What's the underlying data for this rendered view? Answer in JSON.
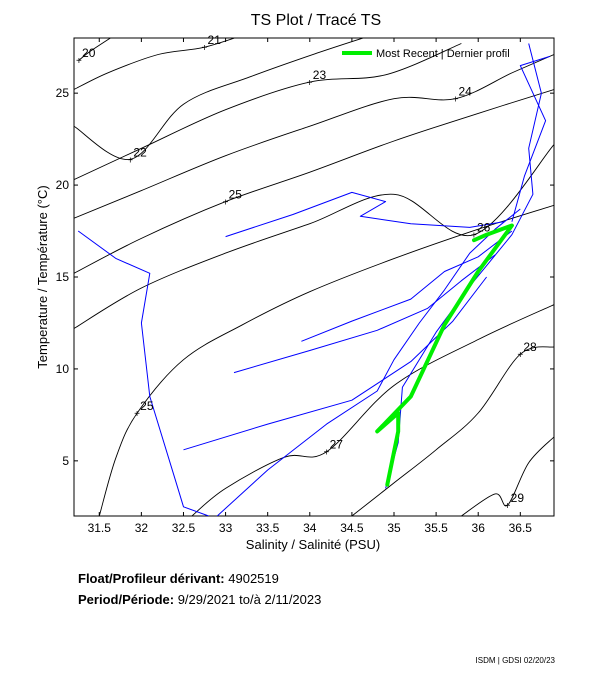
{
  "chart_data": {
    "type": "scatter",
    "title": "TS Plot / Tracé TS",
    "xlabel": "Salinity / Salinité (PSU)",
    "ylabel": "Temperature / Température (°C)",
    "xlim": [
      31.2,
      36.9
    ],
    "ylim": [
      2,
      28
    ],
    "xticks": [
      31.5,
      32,
      32.5,
      33,
      33.5,
      34,
      34.5,
      35,
      35.5,
      36,
      36.5
    ],
    "xtick_labels": [
      "31.5",
      "32",
      "32.5",
      "33",
      "33.5",
      "34",
      "34.5",
      "35",
      "35.5",
      "36",
      "36.5"
    ],
    "yticks": [
      5,
      10,
      15,
      20,
      25
    ],
    "ytick_labels": [
      "5",
      "10",
      "15",
      "20",
      "25"
    ],
    "density_isolines": [
      {
        "label": "20",
        "points": [
          [
            31.26,
            26.8
          ],
          [
            31.4,
            27.3
          ],
          [
            31.7,
            28.2
          ]
        ]
      },
      {
        "label": "21",
        "points": [
          [
            31.2,
            25.2
          ],
          [
            31.6,
            26.1
          ],
          [
            32.2,
            27.1
          ],
          [
            32.75,
            27.5
          ],
          [
            33.3,
            28.3
          ]
        ]
      },
      {
        "label": "22",
        "points": [
          [
            31.2,
            23.2
          ],
          [
            31.87,
            21.4
          ],
          [
            32.5,
            24.4
          ],
          [
            33.3,
            25.9
          ],
          [
            34.1,
            27.2
          ],
          [
            34.7,
            28.1
          ]
        ]
      },
      {
        "label": "23",
        "points": [
          [
            31.2,
            20.3
          ],
          [
            32.0,
            22.0
          ],
          [
            33.0,
            24.1
          ],
          [
            34.0,
            25.6
          ],
          [
            34.9,
            26.0
          ],
          [
            35.8,
            27.7
          ]
        ]
      },
      {
        "label": "24",
        "points": [
          [
            31.2,
            18.2
          ],
          [
            32.0,
            19.7
          ],
          [
            33.0,
            21.6
          ],
          [
            34.0,
            23.2
          ],
          [
            35.0,
            24.7
          ],
          [
            35.73,
            24.7
          ],
          [
            36.4,
            26.1
          ],
          [
            36.9,
            27.1
          ]
        ]
      },
      {
        "label": "25",
        "points": [
          [
            31.2,
            15.2
          ],
          [
            32.0,
            17.1
          ],
          [
            33.0,
            19.1
          ],
          [
            34.0,
            20.7
          ],
          [
            35.0,
            22.4
          ],
          [
            36.0,
            23.9
          ],
          [
            36.9,
            25.2
          ]
        ]
      },
      {
        "label": "26",
        "points": [
          [
            31.2,
            12.2
          ],
          [
            32.0,
            14.4
          ],
          [
            33.0,
            16.3
          ],
          [
            34.0,
            17.9
          ],
          [
            35.0,
            19.5
          ],
          [
            35.95,
            17.3
          ],
          [
            36.9,
            22.2
          ]
        ]
      },
      {
        "label": "25",
        "points": [
          [
            31.5,
            2.0
          ],
          [
            31.7,
            5.2
          ],
          [
            31.95,
            7.6
          ],
          [
            32.5,
            10.5
          ],
          [
            33.2,
            12.4
          ],
          [
            34.0,
            14.2
          ],
          [
            35.0,
            16.0
          ],
          [
            36.0,
            17.6
          ],
          [
            36.9,
            18.9
          ]
        ]
      },
      {
        "label": "27",
        "points": [
          [
            32.6,
            2.0
          ],
          [
            33.0,
            3.5
          ],
          [
            33.7,
            5.2
          ],
          [
            34.2,
            5.5
          ],
          [
            35.0,
            9.1
          ],
          [
            36.0,
            11.6
          ],
          [
            36.9,
            13.5
          ]
        ]
      },
      {
        "label": "28",
        "points": [
          [
            34.5,
            2.0
          ],
          [
            35.0,
            3.8
          ],
          [
            35.5,
            5.6
          ],
          [
            36.0,
            7.6
          ],
          [
            36.5,
            10.8
          ],
          [
            36.9,
            11.2
          ]
        ]
      },
      {
        "label": "29",
        "points": [
          [
            35.8,
            2.0
          ],
          [
            36.2,
            3.2
          ],
          [
            36.35,
            2.6
          ],
          [
            36.6,
            4.9
          ],
          [
            36.9,
            6.3
          ]
        ]
      }
    ],
    "float_track_samples": [
      {
        "series": "all profiles",
        "points": [
          [
            31.25,
            17.5
          ],
          [
            31.7,
            16.0
          ],
          [
            32.1,
            15.2
          ],
          [
            32.0,
            12.5
          ],
          [
            32.1,
            8.5
          ],
          [
            32.4,
            4.0
          ],
          [
            32.5,
            2.5
          ],
          [
            32.8,
            2.0
          ]
        ]
      },
      {
        "series": "all profiles",
        "points": [
          [
            32.9,
            2.0
          ],
          [
            33.5,
            4.5
          ],
          [
            34.2,
            7.0
          ],
          [
            34.8,
            8.8
          ],
          [
            35.0,
            10.5
          ],
          [
            35.3,
            12.5
          ],
          [
            35.6,
            14.3
          ],
          [
            35.9,
            16.3
          ],
          [
            36.2,
            17.6
          ],
          [
            36.5,
            18.7
          ]
        ]
      },
      {
        "series": "all profiles",
        "points": [
          [
            33.0,
            17.2
          ],
          [
            33.8,
            18.4
          ],
          [
            34.5,
            19.6
          ],
          [
            34.9,
            19.1
          ],
          [
            34.6,
            18.3
          ],
          [
            35.2,
            17.9
          ],
          [
            35.9,
            17.7
          ],
          [
            36.3,
            18.0
          ]
        ]
      },
      {
        "series": "all profiles",
        "points": [
          [
            33.9,
            11.5
          ],
          [
            34.5,
            12.6
          ],
          [
            35.2,
            13.8
          ],
          [
            35.6,
            15.3
          ],
          [
            36.0,
            16.1
          ],
          [
            36.4,
            17.5
          ]
        ]
      },
      {
        "series": "all profiles",
        "points": [
          [
            33.1,
            9.8
          ],
          [
            34.0,
            11.0
          ],
          [
            34.8,
            12.1
          ],
          [
            35.4,
            13.3
          ],
          [
            35.8,
            14.8
          ],
          [
            36.2,
            16.2
          ]
        ]
      },
      {
        "series": "all profiles",
        "points": [
          [
            32.5,
            5.6
          ],
          [
            33.5,
            7.0
          ],
          [
            34.5,
            8.3
          ],
          [
            35.2,
            10.4
          ],
          [
            35.7,
            12.6
          ],
          [
            36.1,
            15.0
          ]
        ]
      },
      {
        "series": "all profiles",
        "points": [
          [
            34.9,
            3.5
          ],
          [
            35.05,
            6.0
          ],
          [
            35.1,
            9.0
          ],
          [
            35.5,
            12.0
          ],
          [
            35.9,
            14.5
          ],
          [
            36.4,
            17.3
          ],
          [
            36.65,
            19.5
          ],
          [
            36.6,
            22.0
          ],
          [
            36.75,
            25.0
          ],
          [
            36.6,
            27.7
          ]
        ]
      },
      {
        "series": "all profiles",
        "points": [
          [
            36.4,
            18.0
          ],
          [
            36.55,
            20.5
          ],
          [
            36.8,
            23.5
          ],
          [
            36.5,
            26.5
          ],
          [
            36.85,
            27.0
          ]
        ]
      }
    ],
    "most_recent_profile": {
      "name": "Most Recent | Dernier profil",
      "color": "#00ee00",
      "points": [
        [
          34.92,
          3.7
        ],
        [
          35.05,
          6.6
        ],
        [
          35.05,
          7.6
        ],
        [
          34.8,
          6.6
        ],
        [
          35.2,
          8.5
        ],
        [
          35.6,
          12.4
        ],
        [
          36.0,
          15.3
        ],
        [
          36.4,
          17.8
        ],
        [
          36.1,
          17.3
        ],
        [
          35.95,
          17.0
        ]
      ]
    },
    "track_color": "#0000ff",
    "isoline_color": "#000000",
    "legend_position": "top-right",
    "grid": false
  },
  "info": {
    "float_label": "Float/Profileur dérivant:",
    "float_id": "4902519",
    "period_label": "Period/Période:",
    "start_date": "9/29/2021",
    "to_label": "to/à",
    "end_date": "2/11/2023"
  },
  "footer": {
    "credit": "ISDM | GDSI 02/20/23"
  }
}
